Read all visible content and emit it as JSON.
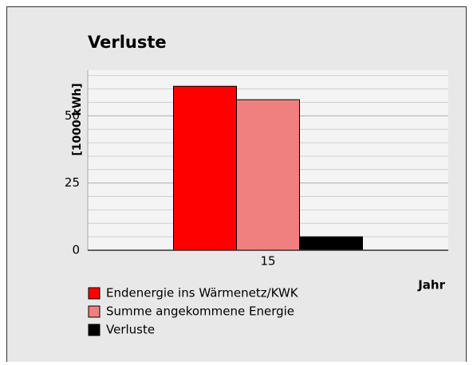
{
  "chart_data": {
    "type": "bar",
    "title": "Verluste",
    "y_label": "[1000 kWh]",
    "x_label": "Jahr",
    "categories": [
      "15"
    ],
    "series": [
      {
        "name": "Endenergie ins Wärmenetz/KWK",
        "color": "#ff0000",
        "values": [
          61
        ]
      },
      {
        "name": "Summe angekommene Energie",
        "color": "#f08080",
        "values": [
          56
        ]
      },
      {
        "name": "Verluste",
        "color": "#000000",
        "values": [
          5
        ]
      }
    ],
    "ylim": [
      0,
      67
    ],
    "yticks": [
      0,
      25,
      50
    ],
    "minor_grid": [
      5,
      10,
      15,
      20,
      30,
      35,
      40,
      45,
      55,
      60,
      65
    ],
    "grid": true,
    "legend": "bottom-left"
  }
}
